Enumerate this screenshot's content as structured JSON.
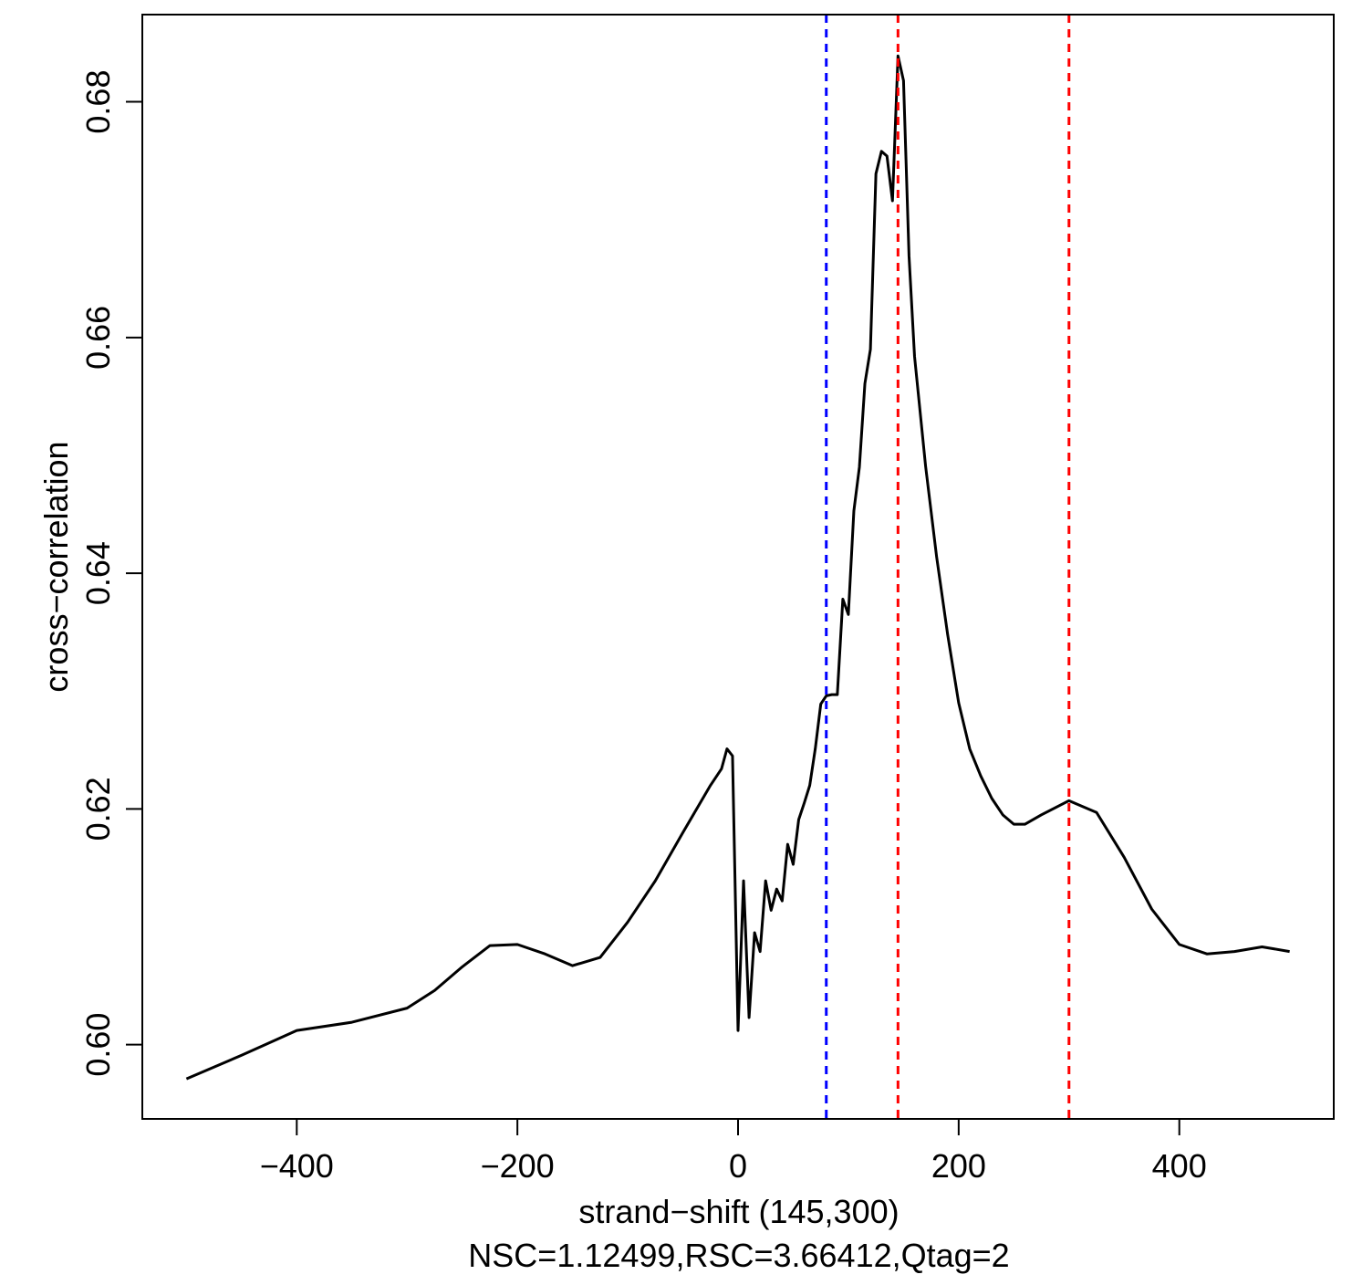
{
  "chart_data": {
    "type": "line",
    "xlabel": "strand−shift (145,300)",
    "subtitle": "NSC=1.12499,RSC=3.66412,Qtag=2",
    "ylabel": "cross−correlation",
    "xlim": [
      -540,
      540
    ],
    "ylim": [
      0.5937,
      0.6874
    ],
    "xticks": [
      {
        "value": -400,
        "label": "−400"
      },
      {
        "value": -200,
        "label": "−200"
      },
      0,
      200,
      400
    ],
    "yticks": [
      {
        "value": 0.6,
        "label": "0.60"
      },
      0.62,
      0.64,
      0.66,
      0.68
    ],
    "x": [
      -500,
      -450,
      -400,
      -350,
      -300,
      -275,
      -250,
      -225,
      -200,
      -175,
      -150,
      -125,
      -100,
      -75,
      -50,
      -25,
      -15,
      -10,
      -5,
      0,
      5,
      10,
      15,
      20,
      25,
      30,
      35,
      40,
      45,
      50,
      55,
      60,
      65,
      70,
      75,
      80,
      85,
      90,
      95,
      100,
      105,
      110,
      115,
      120,
      125,
      130,
      135,
      140,
      145,
      150,
      155,
      160,
      170,
      180,
      190,
      200,
      210,
      220,
      230,
      240,
      250,
      260,
      275,
      300,
      325,
      350,
      375,
      400,
      425,
      450,
      475,
      500
    ],
    "series": [
      {
        "color": "#000000",
        "values": [
          0.5971,
          0.5991,
          0.6012,
          0.6019,
          0.6031,
          0.6046,
          0.6066,
          0.6084,
          0.6085,
          0.6077,
          0.6067,
          0.6074,
          0.6104,
          0.6139,
          0.618,
          0.622,
          0.6234,
          0.6251,
          0.6245,
          0.6012,
          0.6139,
          0.6023,
          0.6095,
          0.6079,
          0.6139,
          0.6114,
          0.6132,
          0.6122,
          0.617,
          0.6153,
          0.6191,
          0.6205,
          0.622,
          0.6251,
          0.6289,
          0.6296,
          0.6297,
          0.6297,
          0.6378,
          0.6365,
          0.6453,
          0.649,
          0.6561,
          0.659,
          0.6739,
          0.6758,
          0.6754,
          0.6716,
          0.6839,
          0.6818,
          0.6669,
          0.6584,
          0.6491,
          0.6414,
          0.6348,
          0.629,
          0.6251,
          0.6228,
          0.6209,
          0.6195,
          0.6187,
          0.6187,
          0.6195,
          0.6207,
          0.6197,
          0.6159,
          0.6115,
          0.6085,
          0.6077,
          0.6079,
          0.6083,
          0.6079
        ]
      }
    ],
    "vlines": [
      {
        "x": 80,
        "color": "#0000ff"
      },
      {
        "x": 145,
        "color": "#ff0000"
      },
      {
        "x": 300,
        "color": "#ff0000"
      }
    ]
  }
}
